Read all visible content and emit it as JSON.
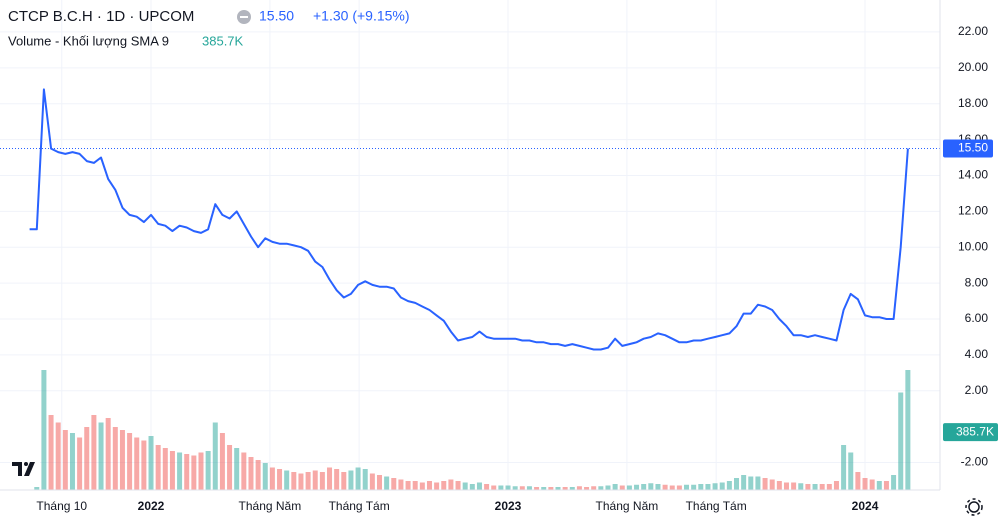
{
  "chart_data": {
    "type": "line",
    "title": "CTCP B.C.H · 1D · UPCOM",
    "last_price": {
      "value": 15.5,
      "label": "15.50"
    },
    "change": "+1.30 (+9.15%)",
    "volume_label": "Volume - Khối lượng SMA 9",
    "volume_sma": {
      "value": 385700,
      "label": "385.7K"
    },
    "color": "#2962ff",
    "up_color": "#26a69a",
    "down_color": "#ef5350",
    "x_start": 2021.66,
    "x_step": 0.02,
    "xlim": [
      2021.577,
      2024.21
    ],
    "xticks": [
      {
        "value": 2021.75,
        "label": "Tháng 10"
      },
      {
        "value": 2022,
        "label": "2022"
      },
      {
        "value": 2022.333,
        "label": "Tháng Năm"
      },
      {
        "value": 2022.583,
        "label": "Tháng Tám"
      },
      {
        "value": 2023,
        "label": "2023"
      },
      {
        "value": 2023.333,
        "label": "Tháng Năm"
      },
      {
        "value": 2023.583,
        "label": "Tháng Tám"
      },
      {
        "value": 2024,
        "label": "2024"
      }
    ],
    "ylim": [
      -3.53,
      23.78
    ],
    "yticks": [
      {
        "value": 22,
        "label": "22.00"
      },
      {
        "value": 20,
        "label": "20.00"
      },
      {
        "value": 18,
        "label": "18.00"
      },
      {
        "value": 16,
        "label": "16.00"
      },
      {
        "value": 14,
        "label": "14.00"
      },
      {
        "value": 12,
        "label": "12.00"
      },
      {
        "value": 10,
        "label": "10.00"
      },
      {
        "value": 8,
        "label": "8.00"
      },
      {
        "value": 6,
        "label": "6.00"
      },
      {
        "value": 4,
        "label": "4.00"
      },
      {
        "value": 2,
        "label": "2.00"
      },
      {
        "value": -2,
        "label": "-2.00"
      }
    ],
    "grid": true,
    "values": [
      11.0,
      11.0,
      18.8,
      15.5,
      15.3,
      15.2,
      15.3,
      15.2,
      14.8,
      14.7,
      15.0,
      13.8,
      13.2,
      12.2,
      11.8,
      11.7,
      11.4,
      11.8,
      11.3,
      11.2,
      10.9,
      11.2,
      11.1,
      10.9,
      10.8,
      11.0,
      12.4,
      11.8,
      11.6,
      12.0,
      11.3,
      10.6,
      10.0,
      10.5,
      10.3,
      10.2,
      10.2,
      10.1,
      10.0,
      9.8,
      9.2,
      8.9,
      8.2,
      7.6,
      7.2,
      7.4,
      7.9,
      8.1,
      7.9,
      7.8,
      7.8,
      7.7,
      7.2,
      7.0,
      6.9,
      6.7,
      6.5,
      6.2,
      5.9,
      5.3,
      4.8,
      4.9,
      5.0,
      5.3,
      5.0,
      4.9,
      4.9,
      4.9,
      4.9,
      4.8,
      4.8,
      4.7,
      4.7,
      4.6,
      4.6,
      4.5,
      4.6,
      4.5,
      4.4,
      4.3,
      4.3,
      4.4,
      4.9,
      4.5,
      4.6,
      4.7,
      4.9,
      5.0,
      5.2,
      5.1,
      4.9,
      4.7,
      4.7,
      4.8,
      4.8,
      4.9,
      5.0,
      5.1,
      5.2,
      5.6,
      6.3,
      6.3,
      6.8,
      6.7,
      6.5,
      6.0,
      5.6,
      5.1,
      5.1,
      5.0,
      5.1,
      5.0,
      4.9,
      4.8,
      6.5,
      7.4,
      7.1,
      6.2,
      6.1,
      6.1,
      6.0,
      6.0,
      10.0,
      15.5
    ],
    "volume_lim": [
      0,
      1000000
    ],
    "volume": [
      0,
      20000,
      800000,
      500000,
      450000,
      400000,
      380000,
      350000,
      420000,
      500000,
      450000,
      480000,
      420000,
      400000,
      380000,
      350000,
      330000,
      360000,
      300000,
      280000,
      260000,
      250000,
      240000,
      230000,
      250000,
      260000,
      450000,
      380000,
      300000,
      280000,
      250000,
      220000,
      200000,
      180000,
      150000,
      140000,
      130000,
      120000,
      110000,
      120000,
      130000,
      120000,
      150000,
      140000,
      120000,
      130000,
      150000,
      140000,
      110000,
      100000,
      90000,
      80000,
      70000,
      60000,
      60000,
      50000,
      60000,
      50000,
      60000,
      70000,
      60000,
      50000,
      40000,
      50000,
      40000,
      30000,
      30000,
      30000,
      25000,
      25000,
      25000,
      20000,
      20000,
      20000,
      20000,
      20000,
      20000,
      25000,
      20000,
      25000,
      25000,
      30000,
      40000,
      30000,
      30000,
      35000,
      40000,
      45000,
      40000,
      35000,
      30000,
      30000,
      35000,
      35000,
      40000,
      40000,
      45000,
      50000,
      60000,
      80000,
      100000,
      90000,
      90000,
      80000,
      70000,
      60000,
      50000,
      50000,
      45000,
      40000,
      40000,
      40000,
      40000,
      60000,
      300000,
      250000,
      120000,
      80000,
      70000,
      60000,
      60000,
      100000,
      650000,
      800000
    ]
  }
}
